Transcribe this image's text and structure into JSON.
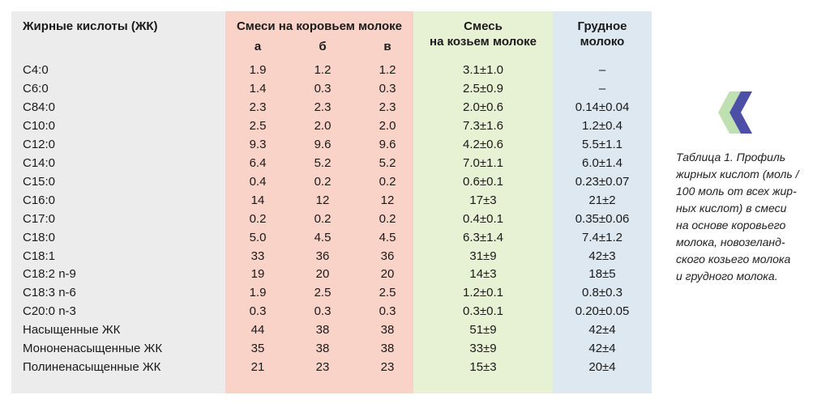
{
  "headers": {
    "name": "Жирные кислоты  (ЖК)",
    "cow_title": "Смеси на коровьем молоке",
    "cow_sub": [
      "а",
      "б",
      "в"
    ],
    "goat_line1": "Смесь",
    "goat_line2": "на козьем молоке",
    "human_line1": "Грудное",
    "human_line2": "молоко"
  },
  "rows": [
    {
      "name": "C4:0",
      "a": "1.9",
      "b": "1.2",
      "v": "1.2",
      "goat": "3.1±1.0",
      "human": "–"
    },
    {
      "name": "C6:0",
      "a": "1.4",
      "b": "0.3",
      "v": "0.3",
      "goat": "2.5±0.9",
      "human": "–"
    },
    {
      "name": "C84:0",
      "a": "2.3",
      "b": "2.3",
      "v": "2.3",
      "goat": "2.0±0.6",
      "human": "0.14±0.04"
    },
    {
      "name": "C10:0",
      "a": "2.5",
      "b": "2.0",
      "v": "2.0",
      "goat": "7.3±1.6",
      "human": "1.2±0.4"
    },
    {
      "name": "C12:0",
      "a": "9.3",
      "b": "9.6",
      "v": "9.6",
      "goat": "4.2±0.6",
      "human": "5.5±1.1"
    },
    {
      "name": "C14:0",
      "a": "6.4",
      "b": "5.2",
      "v": "5.2",
      "goat": "7.0±1.1",
      "human": "6.0±1.4"
    },
    {
      "name": "C15:0",
      "a": "0.4",
      "b": "0.2",
      "v": "0.2",
      "goat": "0.6±0.1",
      "human": "0.23±0.07"
    },
    {
      "name": "C16:0",
      "a": "14",
      "b": "12",
      "v": "12",
      "goat": "17±3",
      "human": "21±2"
    },
    {
      "name": "C17:0",
      "a": "0.2",
      "b": "0.2",
      "v": "0.2",
      "goat": "0.4±0.1",
      "human": "0.35±0.06"
    },
    {
      "name": "C18:0",
      "a": "5.0",
      "b": "4.5",
      "v": "4.5",
      "goat": "6.3±1.4",
      "human": "7.4±1.2"
    },
    {
      "name": "C18:1",
      "a": "33",
      "b": "36",
      "v": "36",
      "goat": "31±9",
      "human": "42±3"
    },
    {
      "name": "C18:2 n-9",
      "a": "19",
      "b": "20",
      "v": "20",
      "goat": "14±3",
      "human": "18±5"
    },
    {
      "name": "C18:3 n-6",
      "a": "1.9",
      "b": "2.5",
      "v": "2.5",
      "goat": "1.2±0.1",
      "human": "0.8±0.3"
    },
    {
      "name": "C20:0 n-3",
      "a": "0.3",
      "b": "0.3",
      "v": "0.3",
      "goat": "0.3±0.1",
      "human": "0.20±0.05"
    },
    {
      "name": "Насыщенные ЖК",
      "a": "44",
      "b": "38",
      "v": "38",
      "goat": "51±9",
      "human": "42±4"
    },
    {
      "name": "Мононенасыщенные ЖК",
      "a": "35",
      "b": "38",
      "v": "38",
      "goat": "33±9",
      "human": "42±4"
    },
    {
      "name": "Полиненасыщенные ЖК",
      "a": "21",
      "b": "23",
      "v": "23",
      "goat": "15±3",
      "human": "20±4"
    }
  ],
  "caption": [
    "Таблица 1. Профиль",
    "жирных кислот (моль /",
    "100 моль от всех жир-",
    "ных кислот) в смеси",
    "на основе коровьего",
    "молока, новозеланд-",
    "ского козьего молока",
    "и грудного молока."
  ],
  "colors": {
    "name_bg": "#ececec",
    "cow_bg": "#f9d2c8",
    "goat_bg": "#e7f1d3",
    "human_bg": "#dde8f1",
    "chevron_light": "#bfe0b0",
    "chevron_dark": "#4d4fa6"
  },
  "icons": {
    "chevron": "double-chevron-left-icon"
  }
}
